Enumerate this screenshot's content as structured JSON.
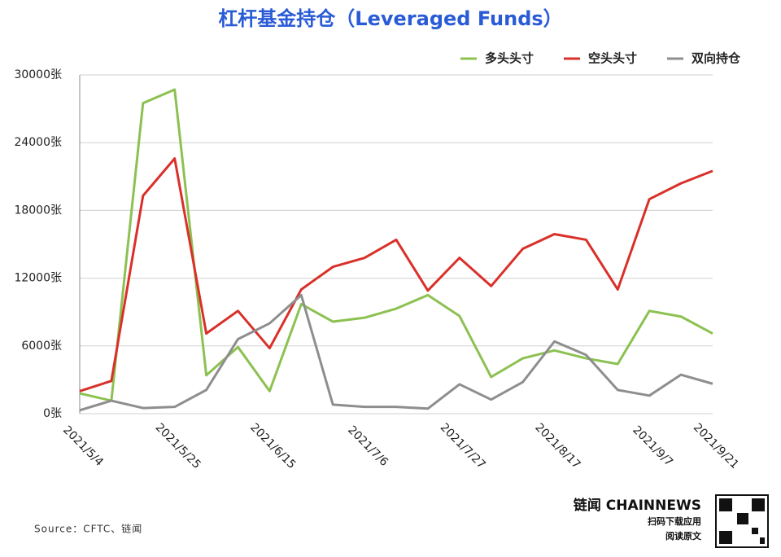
{
  "chart_data": {
    "type": "line",
    "title": "杠杆基金持仓（Leveraged Funds）",
    "categories": [
      "2021/5/4",
      null,
      null,
      "2021/5/25",
      null,
      null,
      "2021/6/15",
      null,
      null,
      "2021/7/6",
      null,
      null,
      "2021/7/27",
      null,
      null,
      "2021/8/17",
      null,
      null,
      "2021/9/7",
      null,
      "2021/9/21"
    ],
    "series": [
      {
        "name": "多头头寸",
        "color": "#8cc152",
        "values": [
          1800,
          1150,
          27500,
          28700,
          3400,
          5900,
          2000,
          9700,
          8150,
          8500,
          9300,
          10500,
          8650,
          3250,
          4900,
          5600,
          4900,
          4400,
          9100,
          8600,
          7100
        ]
      },
      {
        "name": "空头头寸",
        "color": "#d9302a",
        "values": [
          2000,
          2900,
          19300,
          22600,
          7100,
          9100,
          5800,
          11000,
          13000,
          13800,
          15400,
          10900,
          13800,
          11300,
          14600,
          15900,
          15400,
          11000,
          19000,
          20400,
          21500
        ]
      },
      {
        "name": "双向持仓",
        "color": "#8e8e8e",
        "values": [
          300,
          1150,
          500,
          600,
          2100,
          6600,
          8000,
          10500,
          800,
          600,
          600,
          450,
          2600,
          1250,
          2800,
          6400,
          5200,
          2100,
          1600,
          3450,
          2650
        ]
      }
    ],
    "ylim": [
      0,
      30000
    ],
    "yticks": [
      {
        "value": 0,
        "label": "0张"
      },
      {
        "value": 6000,
        "label": "6000张"
      },
      {
        "value": 12000,
        "label": "12000张"
      },
      {
        "value": 18000,
        "label": "18000张"
      },
      {
        "value": 24000,
        "label": "24000张"
      },
      {
        "value": 30000,
        "label": "30000张"
      }
    ],
    "grid": true,
    "legend": "top-right",
    "source": "Source：CFTC、链闻",
    "brand": "链闻 CHAINNEWS",
    "brand_lines": [
      "扫码下载应用",
      "阅读原文"
    ]
  }
}
